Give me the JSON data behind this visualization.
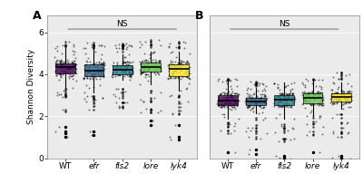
{
  "panel_A_label": "A",
  "panel_B_label": "B",
  "categories": [
    "WT",
    "efr",
    "fls2",
    "lore",
    "lyk4"
  ],
  "colors": [
    "#440154",
    "#31688e",
    "#26828e",
    "#6ece58",
    "#fde725"
  ],
  "ylabel": "Shannon Diversity",
  "ylim": [
    0,
    6.8
  ],
  "yticks": [
    0,
    2,
    4,
    6
  ],
  "ns_label": "NS",
  "background_color": "#ebebeb",
  "panel_A": {
    "medians": [
      4.38,
      4.32,
      4.38,
      4.42,
      4.22
    ],
    "q1": [
      3.88,
      3.78,
      3.88,
      3.98,
      3.78
    ],
    "q3": [
      4.68,
      4.62,
      4.62,
      4.68,
      4.62
    ],
    "whisker_low": [
      2.2,
      2.2,
      2.3,
      2.1,
      2.0
    ],
    "whisker_high": [
      5.62,
      5.52,
      5.52,
      5.68,
      5.58
    ],
    "outliers_low": [
      [
        1.2,
        1.5,
        1.0,
        1.3
      ],
      [
        1.1,
        1.3
      ],
      [],
      [
        1.8,
        1.6
      ],
      [
        0.9,
        1.0,
        1.6
      ]
    ],
    "outliers_high": [
      [],
      [],
      [],
      [],
      []
    ],
    "n_points": 150
  },
  "panel_B": {
    "medians": [
      2.88,
      2.78,
      2.88,
      2.88,
      2.95
    ],
    "q1": [
      2.42,
      2.38,
      2.42,
      2.52,
      2.58
    ],
    "q3": [
      3.18,
      3.08,
      3.12,
      3.18,
      3.22
    ],
    "whisker_low": [
      1.2,
      0.9,
      0.8,
      1.1,
      1.0
    ],
    "whisker_high": [
      3.85,
      3.75,
      3.72,
      3.82,
      4.15
    ],
    "outliers_low": [
      [
        0.3
      ],
      [
        0.4,
        0.2
      ],
      [
        0.0,
        0.1,
        0.05
      ],
      [
        0.3
      ],
      [
        0.1,
        0.05,
        0.0
      ]
    ],
    "outliers_high": [
      [],
      [],
      [],
      [],
      []
    ],
    "n_points": 150
  }
}
